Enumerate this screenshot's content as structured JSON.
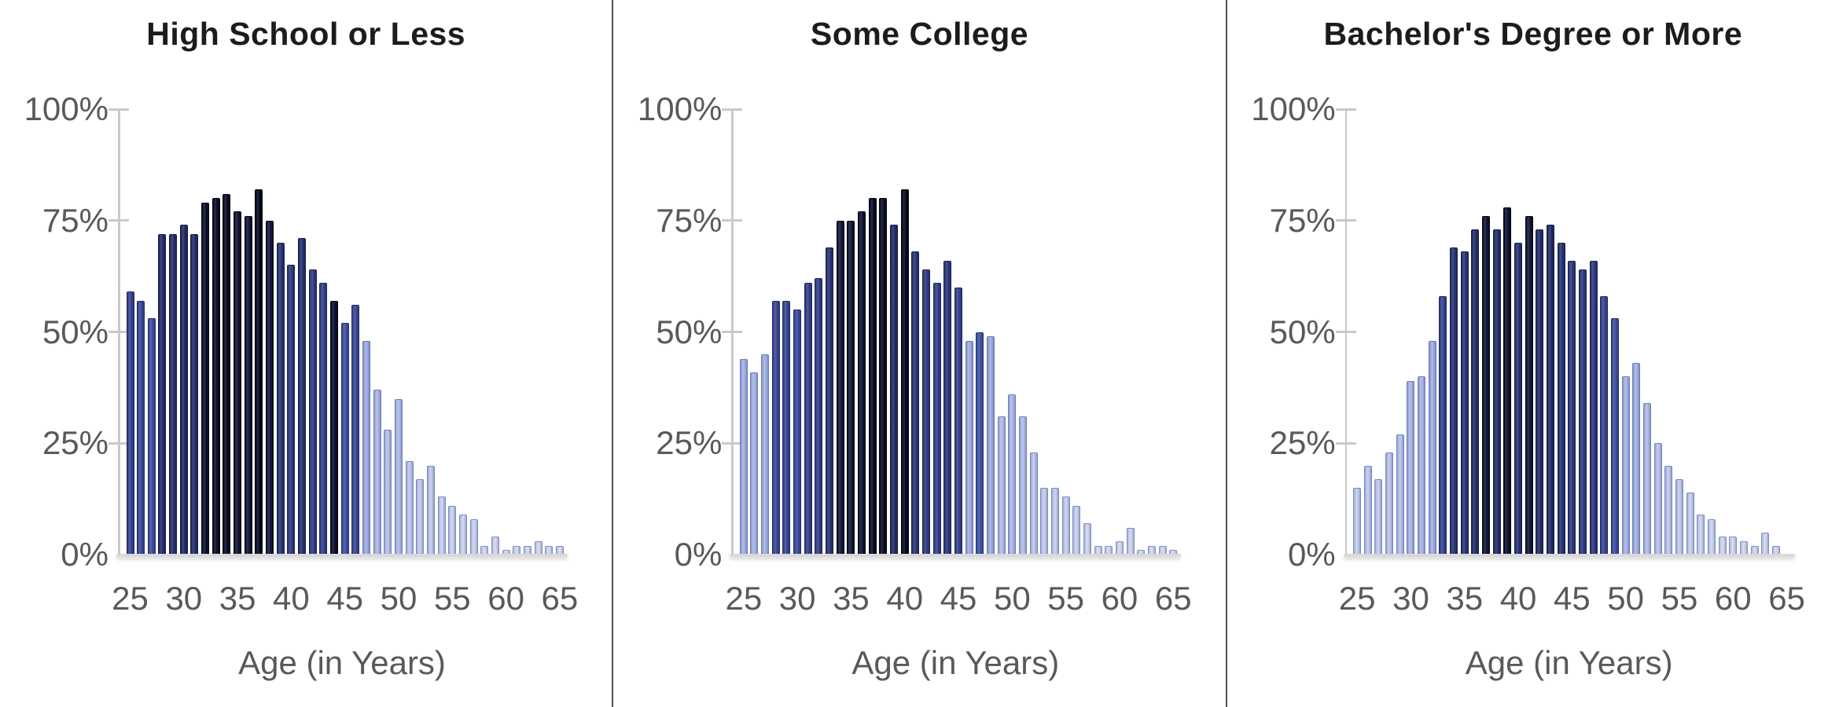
{
  "figure": {
    "background": "#ffffff",
    "separator_color": "#42584a",
    "title_color": "#1c1c1c",
    "axis_text_color": "#595959",
    "axis_line_color": "#c9c9c9",
    "baseline_color": "#d9d9d9",
    "palette": {
      "low_start": "#d3dbf4",
      "low_end": "#9dade3",
      "mid_start": "#4153ab",
      "mid_end": "#212c68",
      "dark_start": "#111739",
      "dark_end": "#05091f",
      "dark_border": "#02040f"
    }
  },
  "chart_data": [
    {
      "type": "bar",
      "title": "High School or Less",
      "x_label": "Age (in Years)",
      "ylabel": "",
      "ylim": [
        0,
        100
      ],
      "grid": false,
      "y_tick_labels": [
        "100%",
        "75%",
        "50%",
        "25%",
        "0%"
      ],
      "x_tick_labels": [
        "25",
        "30",
        "35",
        "40",
        "45",
        "50",
        "55",
        "60",
        "65"
      ],
      "x_range": [
        25,
        65
      ],
      "x_start": 25,
      "values": [
        59,
        57,
        53,
        72,
        72,
        74,
        72,
        79,
        80,
        81,
        77,
        76,
        82,
        75,
        70,
        65,
        71,
        64,
        61,
        57,
        52,
        56,
        48,
        37,
        28,
        35,
        21,
        17,
        20,
        13,
        11,
        9,
        8,
        2,
        4,
        1,
        2,
        2,
        3,
        2,
        2
      ],
      "dark_override_ages": [
        44
      ]
    },
    {
      "type": "bar",
      "title": "Some College",
      "x_label": "Age (in Years)",
      "ylabel": "",
      "ylim": [
        0,
        100
      ],
      "grid": false,
      "y_tick_labels": [
        "100%",
        "75%",
        "50%",
        "25%",
        "0%"
      ],
      "x_tick_labels": [
        "25",
        "30",
        "35",
        "40",
        "45",
        "50",
        "55",
        "60",
        "65"
      ],
      "x_range": [
        25,
        65
      ],
      "x_start": 25,
      "values": [
        44,
        41,
        45,
        57,
        57,
        55,
        61,
        62,
        69,
        75,
        75,
        77,
        80,
        80,
        74,
        82,
        68,
        64,
        61,
        66,
        60,
        48,
        50,
        49,
        31,
        36,
        31,
        23,
        15,
        15,
        13,
        11,
        7,
        2,
        2,
        3,
        6,
        1,
        2,
        2,
        1
      ],
      "dark_override_ages": []
    },
    {
      "type": "bar",
      "title": "Bachelor's Degree or More",
      "x_label": "Age (in Years)",
      "ylabel": "",
      "ylim": [
        0,
        100
      ],
      "grid": false,
      "y_tick_labels": [
        "100%",
        "75%",
        "50%",
        "25%",
        "0%"
      ],
      "x_tick_labels": [
        "25",
        "30",
        "35",
        "40",
        "45",
        "50",
        "55",
        "60",
        "65"
      ],
      "x_range": [
        25,
        65
      ],
      "x_start": 25,
      "values": [
        15,
        20,
        17,
        23,
        27,
        39,
        40,
        48,
        58,
        69,
        68,
        73,
        76,
        73,
        78,
        70,
        76,
        73,
        74,
        70,
        66,
        64,
        66,
        58,
        53,
        40,
        43,
        34,
        25,
        20,
        17,
        14,
        9,
        8,
        4,
        4,
        3,
        2,
        5,
        2,
        0
      ],
      "dark_override_ages": []
    }
  ]
}
